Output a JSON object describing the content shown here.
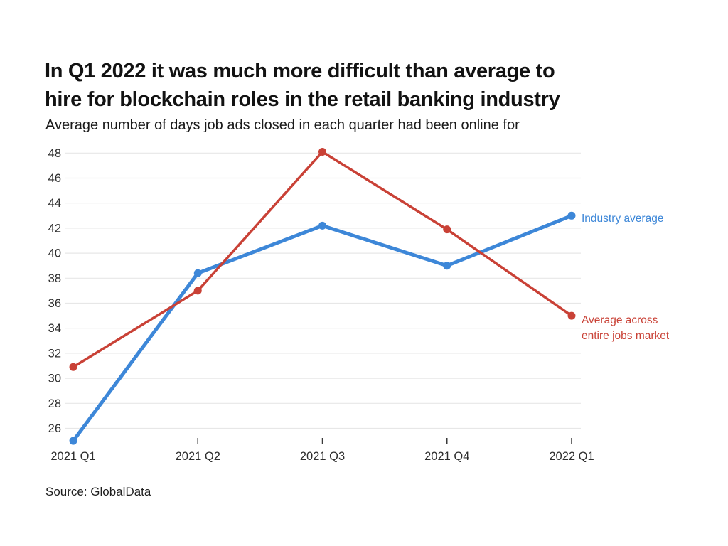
{
  "header": {
    "title_line1": "In Q1 2022 it was much more difficult than average to",
    "title_line2": "hire for blockchain roles in the retail banking industry",
    "subtitle": "Average number of days job ads closed in each quarter had been online for"
  },
  "footer": {
    "source": "Source: GlobalData"
  },
  "chart_data": {
    "type": "line",
    "title": "In Q1 2022 it was much more difficult than average to hire for blockchain roles in the retail banking industry",
    "subtitle": "Average number of days job ads closed in each quarter had been online for",
    "source": "Source: GlobalData",
    "categories": [
      "2021 Q1",
      "2021 Q2",
      "2021 Q3",
      "2021 Q4",
      "2022 Q1"
    ],
    "series": [
      {
        "name": "Industry average",
        "color": "#3d87d8",
        "stroke_width": 5,
        "marker_radius": 5.5,
        "values": [
          25,
          38.4,
          42.2,
          39,
          43
        ]
      },
      {
        "name": "Average across entire jobs market",
        "color": "#c94136",
        "stroke_width": 3.5,
        "marker_radius": 5.5,
        "values": [
          30.9,
          37,
          48.1,
          41.9,
          35
        ]
      }
    ],
    "xlabel": "",
    "ylabel": "",
    "ylim": [
      24.5,
      48.5
    ],
    "yticks": [
      26,
      28,
      30,
      32,
      34,
      36,
      38,
      40,
      42,
      44,
      46,
      48
    ],
    "grid": "horizontal",
    "gridline_color": "#e7e7e7",
    "legend_position": "right-of-last-point"
  }
}
